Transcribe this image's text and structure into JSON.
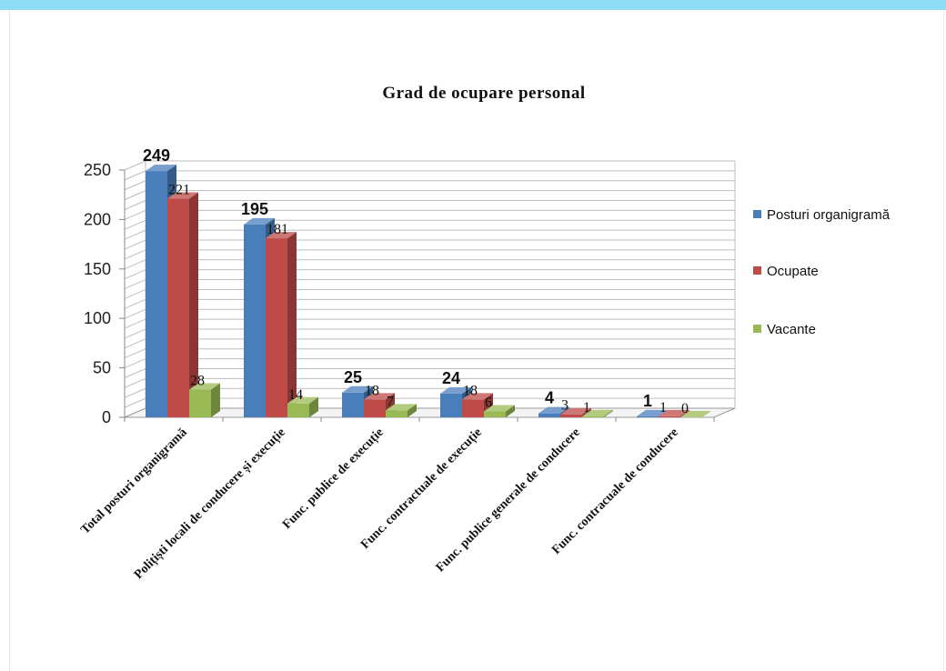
{
  "chart_data": {
    "type": "bar",
    "title": "Grad de ocupare personal",
    "categories": [
      "Total posturi organigramă",
      "Polițiști locali de conducere și execuție",
      "Func. publice de execuție",
      "Func. contractuale de execuție",
      "Func. publice generale de conducere",
      "Func. contracuale de conducere"
    ],
    "series": [
      {
        "name": "Posturi organigramă",
        "color": "#4a7ebb",
        "values": [
          249,
          195,
          25,
          24,
          4,
          1
        ]
      },
      {
        "name": "Ocupate",
        "color": "#be4b48",
        "values": [
          221,
          181,
          18,
          18,
          3,
          1
        ]
      },
      {
        "name": "Vacante",
        "color": "#98b954",
        "values": [
          28,
          14,
          7,
          6,
          1,
          0
        ]
      }
    ],
    "ylim": [
      0,
      250
    ],
    "yticks": [
      0,
      50,
      100,
      150,
      200,
      250
    ],
    "grid": true,
    "legend": "right",
    "style": "3d-clustered-column"
  }
}
